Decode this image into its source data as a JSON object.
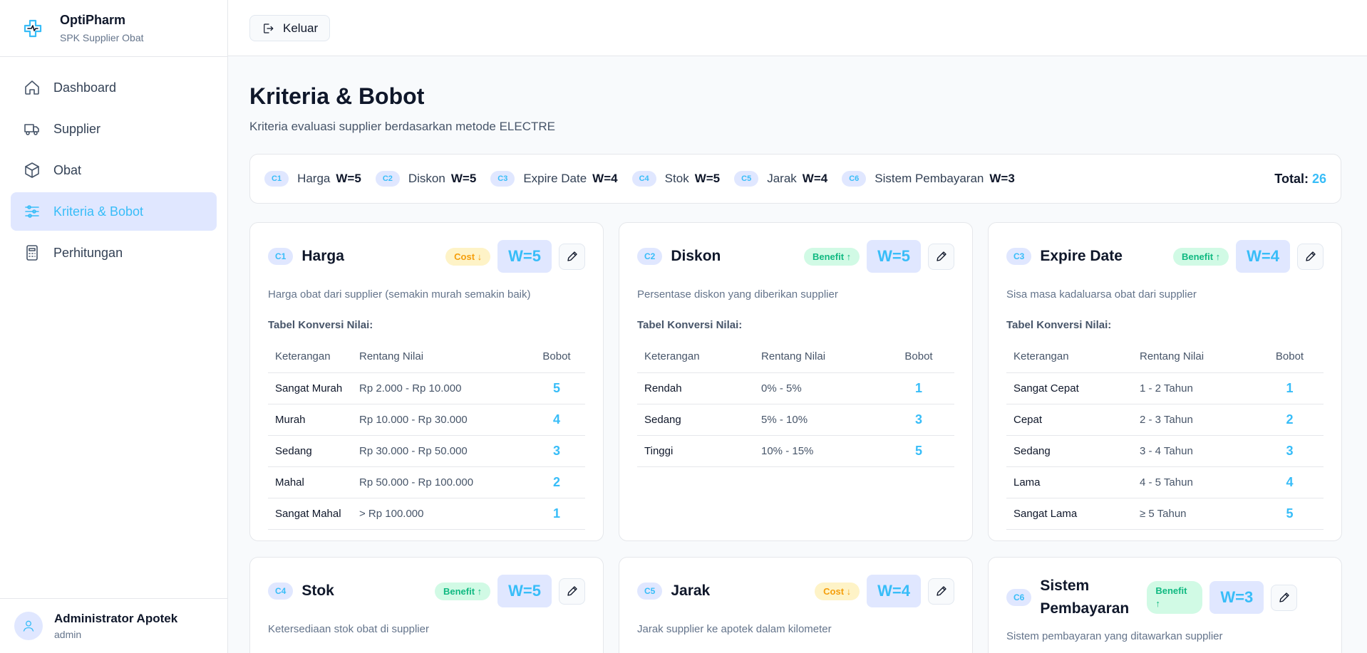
{
  "brand": {
    "name": "OptiPharm",
    "subtitle": "SPK Supplier Obat",
    "logo_icon": "medical-cross-icon"
  },
  "nav": [
    {
      "label": "Dashboard",
      "icon": "home-icon",
      "active": false
    },
    {
      "label": "Supplier",
      "icon": "truck-icon",
      "active": false
    },
    {
      "label": "Obat",
      "icon": "box-icon",
      "active": false
    },
    {
      "label": "Kriteria & Bobot",
      "icon": "sliders-icon",
      "active": true
    },
    {
      "label": "Perhitungan",
      "icon": "calculator-icon",
      "active": false
    }
  ],
  "user": {
    "name": "Administrator Apotek",
    "role": "admin"
  },
  "topbar": {
    "logout_label": "Keluar"
  },
  "page": {
    "title": "Kriteria & Bobot",
    "subtitle": "Kriteria evaluasi supplier berdasarkan metode ELECTRE"
  },
  "summary": {
    "items": [
      {
        "code": "C1",
        "name": "Harga",
        "weight": "W=5"
      },
      {
        "code": "C2",
        "name": "Diskon",
        "weight": "W=5"
      },
      {
        "code": "C3",
        "name": "Expire Date",
        "weight": "W=4"
      },
      {
        "code": "C4",
        "name": "Stok",
        "weight": "W=5"
      },
      {
        "code": "C5",
        "name": "Jarak",
        "weight": "W=4"
      },
      {
        "code": "C6",
        "name": "Sistem Pembayaran",
        "weight": "W=3"
      }
    ],
    "total_label": "Total:",
    "total_value": "26"
  },
  "table_headers": {
    "keterangan": "Keterangan",
    "rentang": "Rentang Nilai",
    "bobot": "Bobot"
  },
  "table_label": "Tabel Konversi Nilai:",
  "criteria": [
    {
      "code": "C1",
      "name": "Harga",
      "type": "Cost ↓",
      "type_class": "cost",
      "weight": "W=5",
      "description": "Harga obat dari supplier (semakin murah semakin baik)",
      "rows": [
        {
          "ket": "Sangat Murah",
          "range": "Rp 2.000 - Rp 10.000",
          "bobot": "5"
        },
        {
          "ket": "Murah",
          "range": "Rp 10.000 - Rp 30.000",
          "bobot": "4"
        },
        {
          "ket": "Sedang",
          "range": "Rp 30.000 - Rp 50.000",
          "bobot": "3"
        },
        {
          "ket": "Mahal",
          "range": "Rp 50.000 - Rp 100.000",
          "bobot": "2"
        },
        {
          "ket": "Sangat Mahal",
          "range": "> Rp 100.000",
          "bobot": "1"
        }
      ]
    },
    {
      "code": "C2",
      "name": "Diskon",
      "type": "Benefit ↑",
      "type_class": "benefit",
      "weight": "W=5",
      "description": "Persentase diskon yang diberikan supplier",
      "rows": [
        {
          "ket": "Rendah",
          "range": "0% - 5%",
          "bobot": "1"
        },
        {
          "ket": "Sedang",
          "range": "5% - 10%",
          "bobot": "3"
        },
        {
          "ket": "Tinggi",
          "range": "10% - 15%",
          "bobot": "5"
        }
      ]
    },
    {
      "code": "C3",
      "name": "Expire Date",
      "type": "Benefit ↑",
      "type_class": "benefit",
      "weight": "W=4",
      "description": "Sisa masa kadaluarsa obat dari supplier",
      "rows": [
        {
          "ket": "Sangat Cepat",
          "range": "1 - 2 Tahun",
          "bobot": "1"
        },
        {
          "ket": "Cepat",
          "range": "2 - 3 Tahun",
          "bobot": "2"
        },
        {
          "ket": "Sedang",
          "range": "3 - 4 Tahun",
          "bobot": "3"
        },
        {
          "ket": "Lama",
          "range": "4 - 5 Tahun",
          "bobot": "4"
        },
        {
          "ket": "Sangat Lama",
          "range": "≥ 5 Tahun",
          "bobot": "5"
        }
      ]
    },
    {
      "code": "C4",
      "name": "Stok",
      "type": "Benefit ↑",
      "type_class": "benefit",
      "weight": "W=5",
      "description": "Ketersediaan stok obat di supplier",
      "rows": []
    },
    {
      "code": "C5",
      "name": "Jarak",
      "type": "Cost ↓",
      "type_class": "cost",
      "weight": "W=4",
      "description": "Jarak supplier ke apotek dalam kilometer",
      "rows": []
    },
    {
      "code": "C6",
      "name": "Sistem Pembayaran",
      "type": "Benefit ↑",
      "type_class": "benefit",
      "weight": "W=3",
      "description": "Sistem pembayaran yang ditawarkan supplier",
      "rows": []
    }
  ],
  "colors": {
    "accent": "#38bdf8",
    "active_bg": "#e0e7ff",
    "cost_bg": "#fef3c7",
    "cost_fg": "#f59e0b",
    "benefit_bg": "#d1fae5",
    "benefit_fg": "#10b981"
  }
}
